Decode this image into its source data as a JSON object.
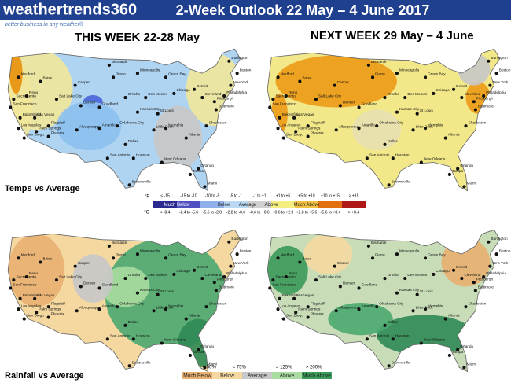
{
  "header": {
    "logo": "weathertrends360",
    "tagline": "better business in any weather®",
    "title": "2-Week Outlook 22 May – 4 June 2017"
  },
  "maps": {
    "this_week": "THIS WEEK 22-28 May",
    "next_week": "NEXT WEEK 29 May – 4 June",
    "temps_label": "Temps vs Average",
    "rain_label": "Rainfall vs Average",
    "cities": [
      "Medford",
      "Boise",
      "Sacramento",
      "Reno",
      "San Francisco",
      "Bakersfield",
      "Las Vegas",
      "Los Angeles",
      "Flagstaff",
      "Palm Springs",
      "San Diego",
      "Phoenix",
      "Casper",
      "Salt Lake City",
      "Denver",
      "Goodland",
      "Albuquerque",
      "Amarillo",
      "Oklahoma City",
      "Dallas",
      "San Antonio",
      "Houston",
      "Brownsville",
      "Bismarck",
      "Pierre",
      "Minneapolis",
      "Omaha",
      "Des Moines",
      "Kansas City",
      "Little Rock",
      "Green Bay",
      "Chicago",
      "St Louis",
      "Detroit",
      "Cleveland",
      "Pittsburgh",
      "Charleston",
      "Atlanta",
      "Memphis",
      "New Orleans",
      "Tampa",
      "Orlando",
      "Miami",
      "Burlington",
      "Boston",
      "New York",
      "Philadelphia",
      "Baltimore"
    ]
  },
  "temp_legend": {
    "f_unit": "°F",
    "c_unit": "°C",
    "f_ranges": [
      "< -15",
      "-15 to -10",
      "-10 to -5",
      "-5 to -1",
      "-1 to +1",
      "+1 to +5",
      "+5 to +10",
      "+10 to +15",
      "> +15"
    ],
    "c_ranges": [
      "< -8.4",
      "-8.4 to -5.6",
      "-5.6 to -2.8",
      "-2.8 to -0.6",
      "-0.6 to +0.6",
      "+0.6 to +2.8",
      "+2.8 to +5.6",
      "+5.6 to +8.4",
      "> +8.4"
    ],
    "classes": [
      "Much Below",
      "Below",
      "Average",
      "Above",
      "Much Above"
    ]
  },
  "rain_legend": {
    "thresholds": [
      "< 50%",
      "< 75%",
      "> 125%",
      "> 200%"
    ],
    "classes": [
      "Much Below",
      "Below",
      "Average",
      "Above",
      "Much Above"
    ]
  }
}
